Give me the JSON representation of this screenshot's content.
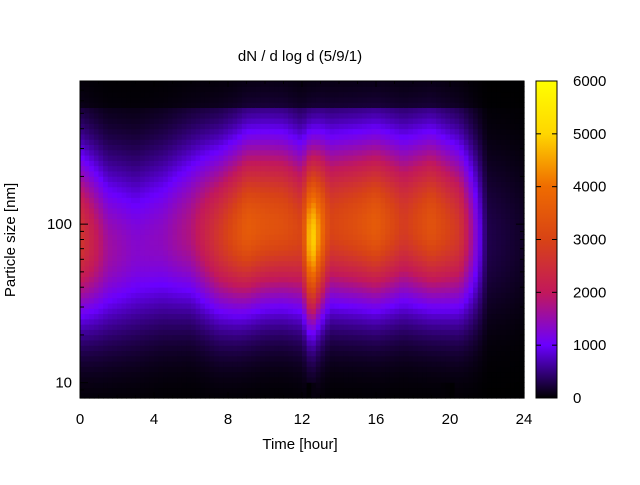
{
  "chart_data": {
    "type": "heatmap",
    "title": "dN / d log d (5/9/1)",
    "xlabel": "Time [hour]",
    "ylabel": "Particle size [nm]",
    "xlim": [
      0,
      24
    ],
    "ylim": [
      8,
      800
    ],
    "y_scale": "log",
    "x_ticks": [
      0,
      4,
      8,
      12,
      16,
      20,
      24
    ],
    "y_ticks": [
      10,
      100
    ],
    "colorbar": {
      "min": 0,
      "max": 6000,
      "ticks": [
        0,
        1000,
        2000,
        3000,
        4000,
        5000,
        6000
      ],
      "palette": [
        "#000000",
        "#6a00ff",
        "#c2185b",
        "#d84315",
        "#ef6c00",
        "#ffd600",
        "#ffff00"
      ]
    },
    "grid": false,
    "series": [
      {
        "x": 0.0,
        "mode_nm": 80,
        "peak": 2700
      },
      {
        "x": 1.5,
        "mode_nm": 70,
        "peak": 1600
      },
      {
        "x": 3.0,
        "mode_nm": 70,
        "peak": 1300
      },
      {
        "x": 4.5,
        "mode_nm": 80,
        "peak": 1400
      },
      {
        "x": 6.0,
        "mode_nm": 90,
        "peak": 1800
      },
      {
        "x": 7.5,
        "mode_nm": 85,
        "peak": 2700
      },
      {
        "x": 8.5,
        "mode_nm": 90,
        "peak": 3300
      },
      {
        "x": 9.0,
        "mode_nm": 95,
        "peak": 3600
      },
      {
        "x": 10.0,
        "mode_nm": 100,
        "peak": 3400
      },
      {
        "x": 11.0,
        "mode_nm": 100,
        "peak": 3300
      },
      {
        "x": 12.0,
        "mode_nm": 90,
        "peak": 3000
      },
      {
        "x": 12.5,
        "mode_nm": 80,
        "peak": 5200
      },
      {
        "x": 13.5,
        "mode_nm": 100,
        "peak": 3000
      },
      {
        "x": 15.0,
        "mode_nm": 100,
        "peak": 3300
      },
      {
        "x": 16.0,
        "mode_nm": 100,
        "peak": 3600
      },
      {
        "x": 17.5,
        "mode_nm": 100,
        "peak": 2800
      },
      {
        "x": 19.0,
        "mode_nm": 100,
        "peak": 3400
      },
      {
        "x": 20.5,
        "mode_nm": 90,
        "peak": 2700
      },
      {
        "x": 22.0,
        "mode_nm": 80,
        "peak": 300
      },
      {
        "x": 24.0,
        "mode_nm": 80,
        "peak": 150
      }
    ],
    "low_signal_band": [
      {
        "x": 12.3,
        "value": 0
      },
      {
        "x": 14.0,
        "value": 300
      },
      {
        "x": 15.5,
        "value": 200
      },
      {
        "x": 18.0,
        "value": 100
      },
      {
        "x": 20.3,
        "value": 0
      }
    ]
  }
}
